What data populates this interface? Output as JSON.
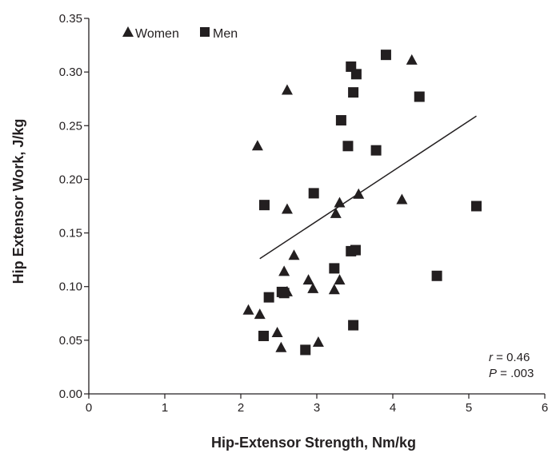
{
  "chart_data": {
    "type": "scatter",
    "xlabel": "Hip-Extensor Strength, Nm/kg",
    "ylabel": "Hip Extensor Work, J/kg",
    "xlim": [
      0,
      6
    ],
    "ylim": [
      0,
      0.35
    ],
    "x_ticks": [
      0,
      1,
      2,
      3,
      4,
      5,
      6
    ],
    "x_tick_labels": [
      "0",
      "1",
      "2",
      "3",
      "4",
      "5",
      "6"
    ],
    "y_ticks": [
      0,
      0.05,
      0.1,
      0.15,
      0.2,
      0.25,
      0.3,
      0.35
    ],
    "y_tick_labels": [
      "0.00",
      "0.05",
      "0.10",
      "0.15",
      "0.20",
      "0.25",
      "0.30",
      "0.35"
    ],
    "grid": false,
    "legend_position": "top-left",
    "series": [
      {
        "name": "Women",
        "marker": "triangle",
        "color": "#231f20",
        "points": [
          {
            "x": 2.1,
            "y": 0.078
          },
          {
            "x": 2.22,
            "y": 0.231
          },
          {
            "x": 2.25,
            "y": 0.074
          },
          {
            "x": 2.48,
            "y": 0.057
          },
          {
            "x": 2.53,
            "y": 0.043
          },
          {
            "x": 2.57,
            "y": 0.114
          },
          {
            "x": 2.61,
            "y": 0.095
          },
          {
            "x": 2.61,
            "y": 0.283
          },
          {
            "x": 2.61,
            "y": 0.172
          },
          {
            "x": 2.7,
            "y": 0.129
          },
          {
            "x": 2.89,
            "y": 0.106
          },
          {
            "x": 2.95,
            "y": 0.098
          },
          {
            "x": 3.02,
            "y": 0.048
          },
          {
            "x": 3.23,
            "y": 0.097
          },
          {
            "x": 3.25,
            "y": 0.168
          },
          {
            "x": 3.3,
            "y": 0.178
          },
          {
            "x": 3.3,
            "y": 0.106
          },
          {
            "x": 3.55,
            "y": 0.186
          },
          {
            "x": 4.12,
            "y": 0.181
          },
          {
            "x": 4.25,
            "y": 0.311
          }
        ]
      },
      {
        "name": "Men",
        "marker": "square",
        "color": "#231f20",
        "points": [
          {
            "x": 2.3,
            "y": 0.054
          },
          {
            "x": 2.31,
            "y": 0.176
          },
          {
            "x": 2.37,
            "y": 0.09
          },
          {
            "x": 2.54,
            "y": 0.095
          },
          {
            "x": 2.57,
            "y": 0.094
          },
          {
            "x": 2.85,
            "y": 0.041
          },
          {
            "x": 2.96,
            "y": 0.187
          },
          {
            "x": 3.23,
            "y": 0.117
          },
          {
            "x": 3.32,
            "y": 0.255
          },
          {
            "x": 3.41,
            "y": 0.231
          },
          {
            "x": 3.45,
            "y": 0.133
          },
          {
            "x": 3.45,
            "y": 0.305
          },
          {
            "x": 3.48,
            "y": 0.281
          },
          {
            "x": 3.48,
            "y": 0.064
          },
          {
            "x": 3.51,
            "y": 0.134
          },
          {
            "x": 3.52,
            "y": 0.298
          },
          {
            "x": 3.78,
            "y": 0.227
          },
          {
            "x": 3.91,
            "y": 0.316
          },
          {
            "x": 4.35,
            "y": 0.277
          },
          {
            "x": 4.58,
            "y": 0.11
          },
          {
            "x": 5.1,
            "y": 0.175
          }
        ]
      }
    ],
    "trendline": {
      "x": [
        2.25,
        5.1
      ],
      "y": [
        0.126,
        0.259
      ],
      "color": "#231f20"
    },
    "annotation": {
      "r_label": "r",
      "r_value": " = 0.46",
      "p_label": "P",
      "p_value": " = .003"
    }
  }
}
